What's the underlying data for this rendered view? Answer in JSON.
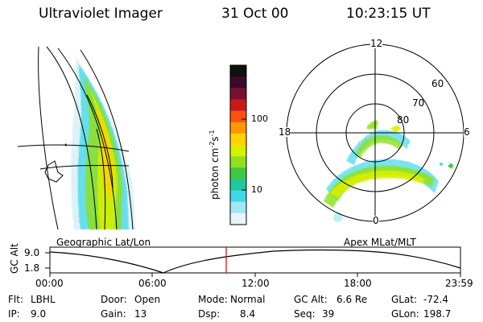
{
  "header": {
    "instrument": "Ultraviolet Imager",
    "date": "31 Oct 00",
    "time": "10:23:15 UT"
  },
  "left_panel": {
    "label": "Geographic Lat/Lon"
  },
  "colorbar": {
    "axis_label": "photon cm",
    "exp1": "-2",
    "unit_s": "s",
    "exp2": "-1",
    "ticks": [
      "100",
      "10"
    ],
    "colors": [
      "#101010",
      "#3a0a2a",
      "#7a1030",
      "#c81818",
      "#ff5010",
      "#ff9900",
      "#ffd200",
      "#d8f000",
      "#90e020",
      "#40c840",
      "#20c8a0",
      "#40d8e8",
      "#a0e8f0",
      "#e8f4f8"
    ]
  },
  "polar_panel": {
    "label": "Apex MLat/MLT",
    "hour_labels": [
      "12",
      "18",
      "6",
      "0"
    ],
    "lat_labels": [
      "60",
      "70",
      "80"
    ]
  },
  "altitude_plot": {
    "ylabel": "GC Alt",
    "yticks": [
      "9.0",
      "1.8"
    ],
    "xticks": [
      "00:00",
      "06:00",
      "12:00",
      "18:00",
      "23:59"
    ],
    "cursor_color": "#e00000"
  },
  "status": {
    "flt_label": "Flt:",
    "flt_value": "LBHL",
    "ip_label": "IP:",
    "ip_value": "9.0",
    "door_label": "Door:",
    "door_value": "Open",
    "gain_label": "Gain:",
    "gain_value": "13",
    "mode_label": "Mode:",
    "mode_value": "Normal",
    "dsp_label": "Dsp:",
    "dsp_value": "8.4",
    "gcalt_label": "GC Alt:",
    "gcalt_value": "6.6 Re",
    "seq_label": "Seq:",
    "seq_value": "39",
    "glat_label": "GLat:",
    "glat_value": "-72.4",
    "glon_label": "GLon:",
    "glon_value": "198.7"
  }
}
